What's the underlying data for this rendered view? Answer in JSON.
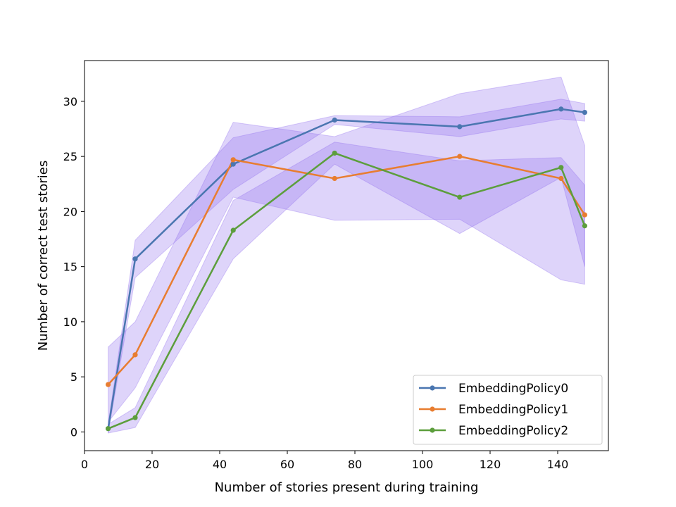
{
  "chart_data": {
    "type": "line",
    "title": "",
    "xlabel": "Number of stories present during training",
    "ylabel": "Number of correct test stories",
    "xlim": [
      0,
      155
    ],
    "ylim": [
      -1.7,
      33.7
    ],
    "xticks": [
      0,
      20,
      40,
      60,
      80,
      100,
      120,
      140
    ],
    "yticks": [
      0,
      5,
      10,
      15,
      20,
      25,
      30
    ],
    "grid": false,
    "legend_position": "lower-right",
    "band_color": "#9370ee",
    "x": [
      7,
      15,
      44,
      74,
      111,
      141,
      148
    ],
    "series": [
      {
        "name": "EmbeddingPolicy0",
        "color": "#4a76b0",
        "values": [
          0.3,
          15.7,
          24.3,
          28.3,
          27.7,
          29.3,
          29.0
        ],
        "lower": [
          -0.1,
          14.0,
          22.0,
          27.9,
          26.8,
          28.4,
          28.2
        ],
        "upper": [
          0.7,
          17.4,
          26.7,
          28.7,
          28.6,
          30.2,
          29.8
        ]
      },
      {
        "name": "EmbeddingPolicy1",
        "color": "#e87d30",
        "values": [
          4.3,
          7.0,
          24.7,
          23.0,
          25.0,
          23.0,
          19.7
        ],
        "lower": [
          0.9,
          4.0,
          21.3,
          19.2,
          19.3,
          13.8,
          13.4
        ],
        "upper": [
          7.7,
          10.0,
          28.1,
          26.8,
          30.7,
          32.2,
          26.0
        ]
      },
      {
        "name": "EmbeddingPolicy2",
        "color": "#5c9e3c",
        "values": [
          0.3,
          1.3,
          18.3,
          25.3,
          21.3,
          24.0,
          18.7
        ],
        "lower": [
          -0.1,
          0.4,
          15.7,
          24.3,
          18.0,
          23.1,
          15.0
        ],
        "upper": [
          0.7,
          2.2,
          21.0,
          26.3,
          24.6,
          24.9,
          22.4
        ]
      }
    ]
  }
}
